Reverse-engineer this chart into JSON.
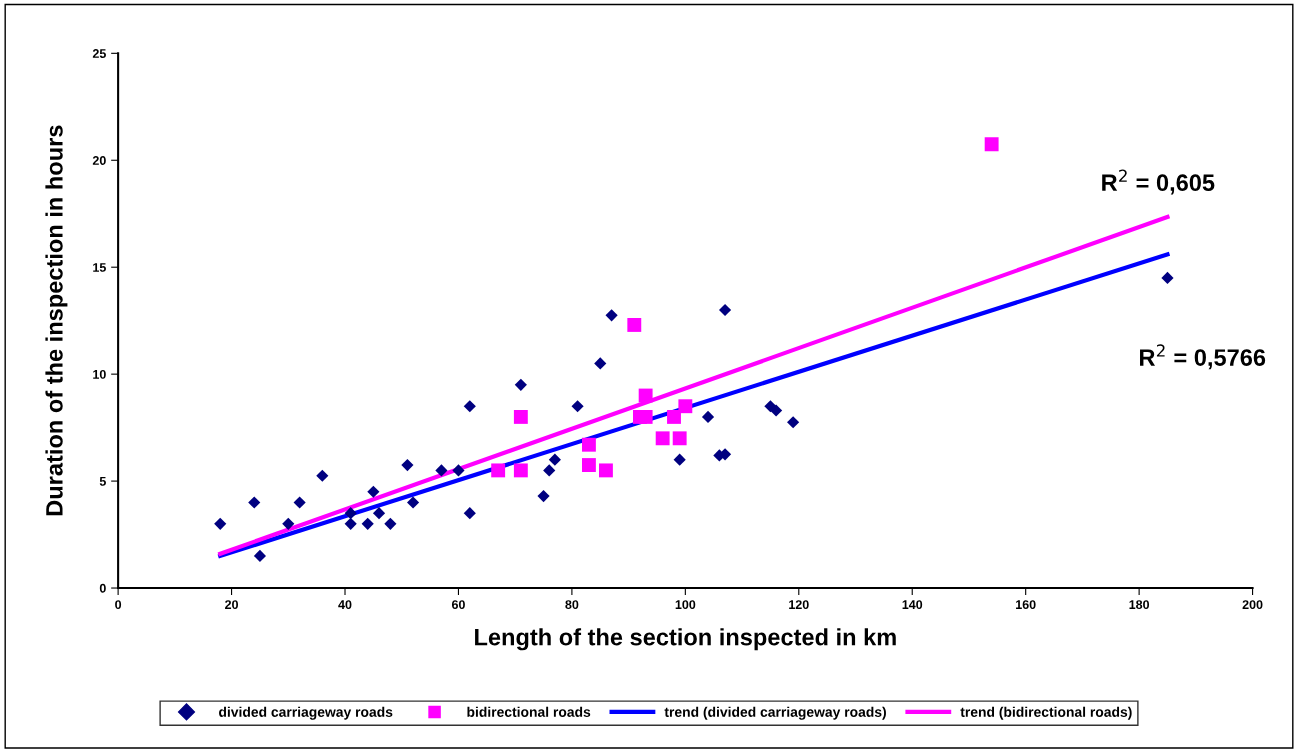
{
  "chart_data": {
    "type": "scatter",
    "xlabel": "Length of the section inspected in km",
    "ylabel": "Duration of the inspection in hours",
    "xlim": [
      0,
      200
    ],
    "xticks": [
      0,
      20,
      40,
      60,
      80,
      100,
      120,
      140,
      160,
      180,
      200
    ],
    "ylim": [
      0,
      25
    ],
    "yticks": [
      0,
      5,
      10,
      15,
      20,
      25
    ],
    "grid": false,
    "legend": "bottom",
    "series": [
      {
        "name": "divided carriageway roads",
        "marker": "diamond",
        "color": "#000080",
        "x": [
          18,
          24,
          25,
          30,
          32,
          36,
          41,
          41,
          44,
          45,
          46,
          48,
          51,
          52,
          57,
          60,
          62,
          62,
          71,
          75,
          76,
          77,
          81,
          85,
          87,
          99,
          104,
          106,
          107,
          107,
          115,
          116,
          119,
          185
        ],
        "values": [
          3,
          4,
          1.5,
          3,
          4,
          5.25,
          3.5,
          3,
          3,
          4.5,
          3.5,
          3,
          5.75,
          4,
          5.5,
          5.5,
          8.5,
          3.5,
          9.5,
          4.3,
          5.5,
          6,
          8.5,
          10.5,
          12.75,
          6,
          8,
          6.2,
          13,
          6.25,
          8.5,
          8.3,
          7.75,
          14.5
        ]
      },
      {
        "name": "bidirectional roads",
        "marker": "square",
        "color": "#ff00ff",
        "x": [
          67,
          71,
          71,
          83,
          83,
          86,
          91,
          92,
          93,
          93,
          96,
          98,
          99,
          100,
          154
        ],
        "values": [
          5.5,
          8,
          5.5,
          6.7,
          5.75,
          5.5,
          12.3,
          8,
          9,
          8,
          7,
          8,
          7,
          8.5,
          20.75
        ]
      },
      {
        "name": "trend (divided carriageway roads)",
        "type": "line",
        "marker": "none",
        "line_style": "solid",
        "color": "#0000ff",
        "x": [
          18,
          185
        ],
        "values": [
          1.5,
          15.6
        ]
      },
      {
        "name": "trend (bidirectional roads)",
        "type": "line",
        "marker": "none",
        "line_style": "solid",
        "color": "#ff00ff",
        "x": [
          18,
          185
        ],
        "values": [
          1.6,
          17.35
        ]
      }
    ],
    "annotations": [
      "R$^{2}$ = 0,605",
      "R$^{2}$ = 0,5766"
    ]
  }
}
